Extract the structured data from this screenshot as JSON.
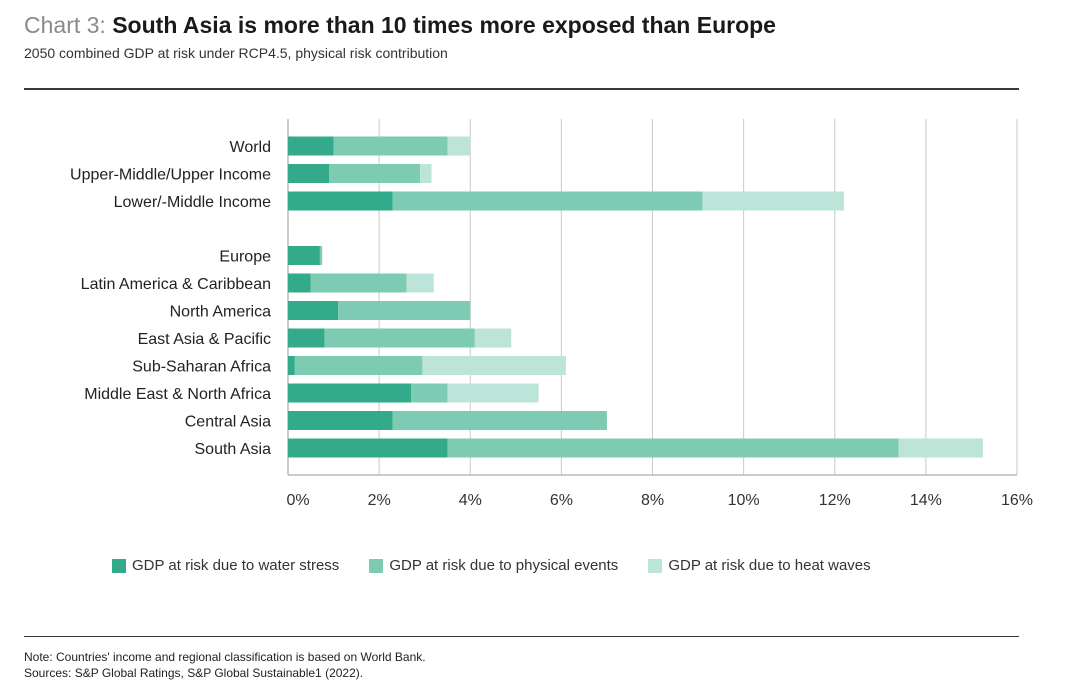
{
  "header": {
    "title_prefix": "Chart 3: ",
    "title_main": "South Asia is more than 10 times more exposed than Europe",
    "subtitle": "2050 combined GDP at risk under RCP4.5, physical risk contribution"
  },
  "footer": {
    "note": "Note: Countries' income and regional classification is based on World Bank.",
    "sources": "Sources: S&P Global Ratings, S&P Global Sustainable1 (2022)."
  },
  "colors": {
    "water": "#33ab8a",
    "physical": "#7ccbb2",
    "heat": "#bde4d8",
    "grid": "#c9c9c9",
    "axis": "#9a9a9a"
  },
  "chart_data": {
    "type": "bar",
    "orientation": "horizontal",
    "stacked": true,
    "categories": [
      "World",
      "Upper-Middle/Upper Income",
      "Lower/-Middle Income",
      "Europe",
      "Latin America & Caribbean",
      "North America",
      "East Asia & Pacific",
      "Sub-Saharan Africa",
      "Middle East & North Africa",
      "Central Asia",
      "South Asia"
    ],
    "groups": [
      [
        0,
        1,
        2
      ],
      [
        3,
        4,
        5,
        6,
        7,
        8,
        9,
        10
      ]
    ],
    "series": [
      {
        "name": "GDP at risk due to water stress",
        "color_key": "water",
        "values": [
          1.0,
          0.9,
          2.3,
          0.7,
          0.5,
          1.1,
          0.8,
          0.15,
          2.7,
          2.3,
          3.5
        ]
      },
      {
        "name": "GDP at risk due to physical events",
        "color_key": "physical",
        "values": [
          2.5,
          2.0,
          6.8,
          0.05,
          2.1,
          2.9,
          3.3,
          2.8,
          0.8,
          4.7,
          9.9
        ]
      },
      {
        "name": "GDP at risk due to heat waves",
        "color_key": "heat",
        "values": [
          0.5,
          0.25,
          3.1,
          0.0,
          0.6,
          0.0,
          0.8,
          3.15,
          2.0,
          0.0,
          1.85
        ]
      }
    ],
    "xlim": [
      0,
      16
    ],
    "xticks": [
      0,
      2,
      4,
      6,
      8,
      10,
      12,
      14,
      16
    ],
    "tick_labels": [
      "0%",
      "2%",
      "4%",
      "6%",
      "8%",
      "10%",
      "12%",
      "14%",
      "16%"
    ],
    "grid": true,
    "legend_position": "bottom"
  }
}
